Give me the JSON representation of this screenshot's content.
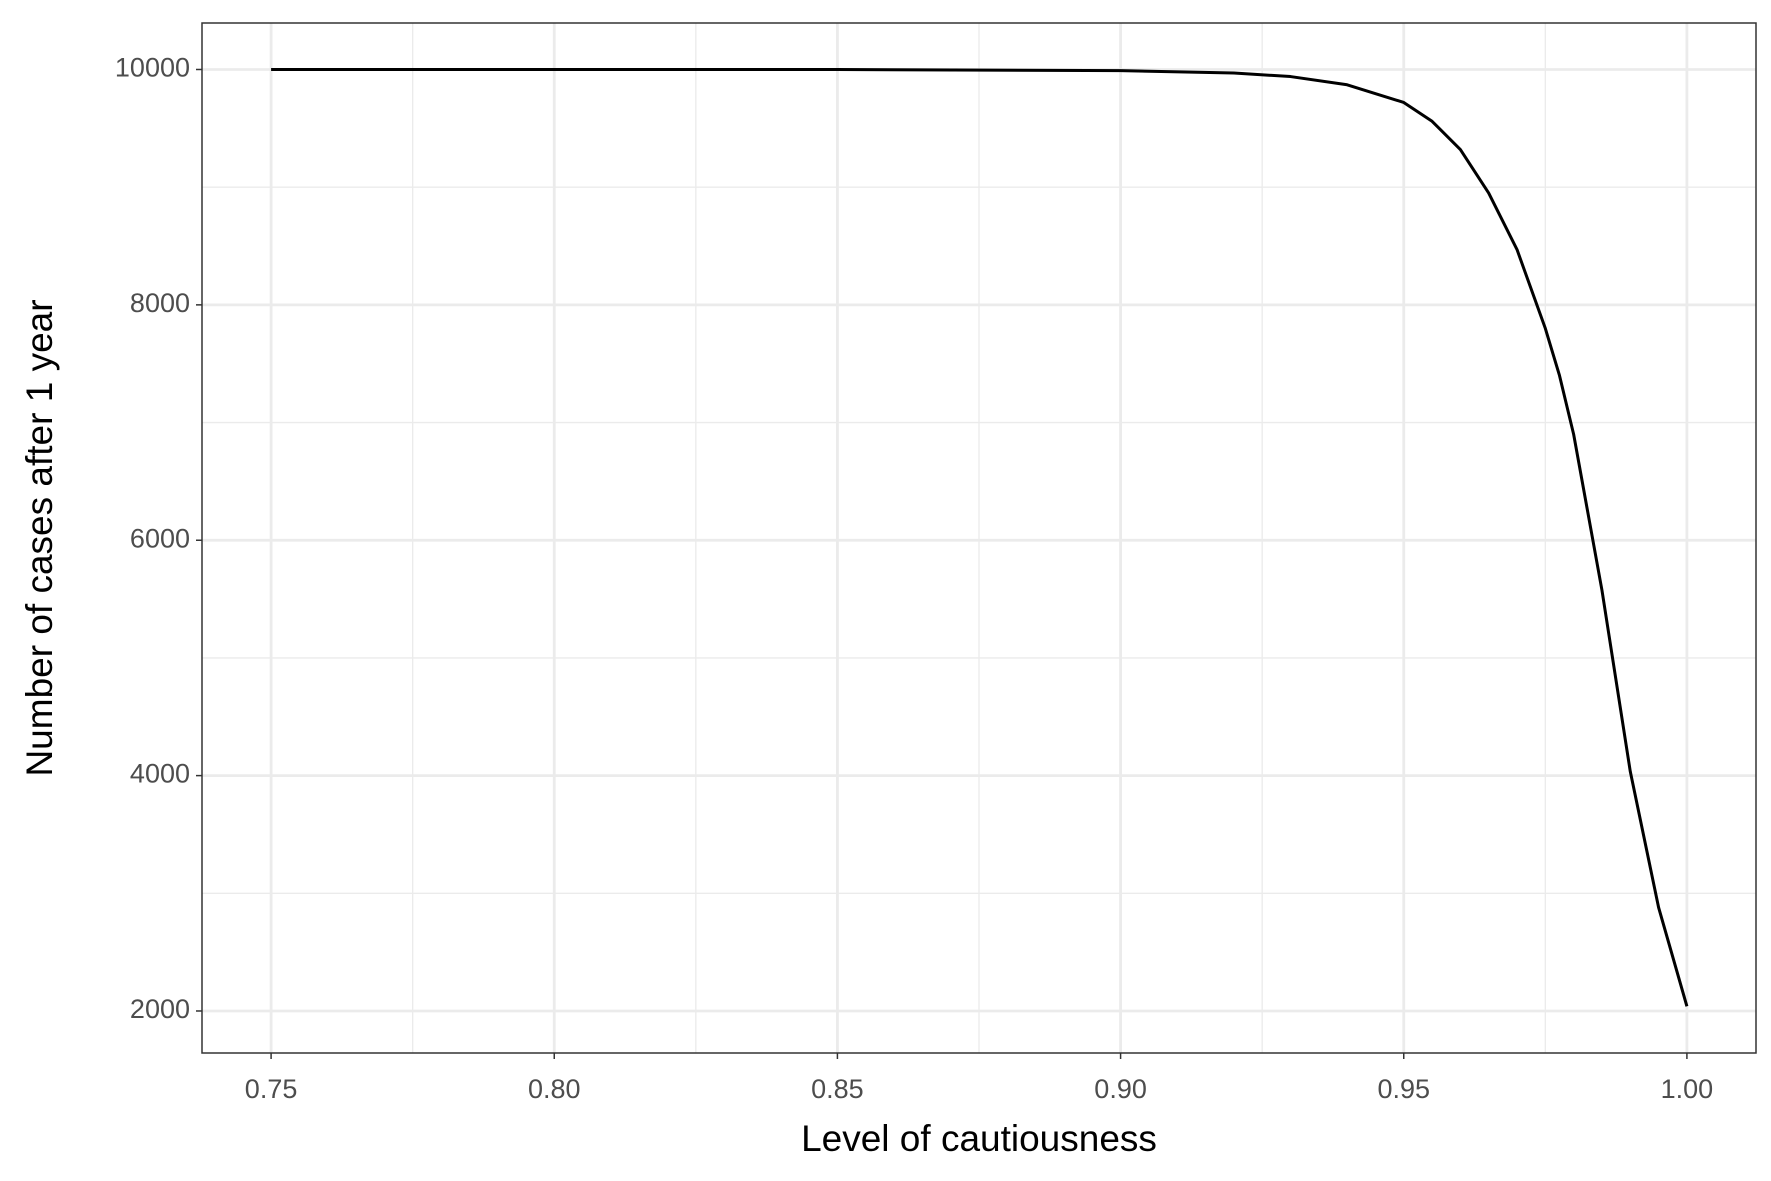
{
  "chart_data": {
    "type": "line",
    "x_label": "Level of cautiousness",
    "y_label": "Number of cases after 1 year",
    "x": [
      0.75,
      0.8,
      0.85,
      0.9,
      0.92,
      0.93,
      0.94,
      0.95,
      0.955,
      0.96,
      0.965,
      0.97,
      0.975,
      0.9775,
      0.98,
      0.985,
      0.99,
      0.995,
      1.0
    ],
    "series": [
      {
        "color": "#000000",
        "values": [
          10000,
          10000,
          10000,
          9990,
          9970,
          9940,
          9870,
          9720,
          9560,
          9320,
          8950,
          8470,
          7800,
          7400,
          6900,
          5575,
          4035,
          2880,
          2040
        ]
      }
    ],
    "xlim": [
      0.7378,
      1.0122
    ],
    "ylim": [
      1643,
      10395
    ],
    "xticks": [
      0.75,
      {
        "value": 0.8,
        "label": "0.80"
      },
      0.85,
      {
        "value": 0.9,
        "label": "0.90"
      },
      0.95,
      {
        "value": 1,
        "label": "1.00"
      }
    ],
    "yticks": [
      2000,
      4000,
      6000,
      8000,
      10000
    ],
    "grid": true
  }
}
